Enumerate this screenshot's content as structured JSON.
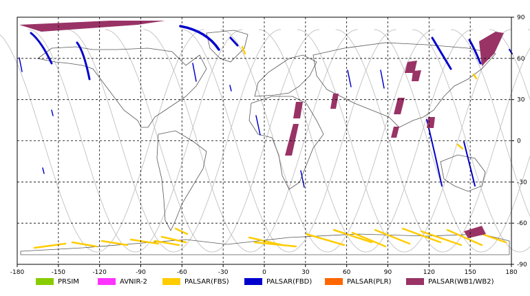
{
  "axes": {
    "x_ticks": [
      "-180",
      "-150",
      "-120",
      "-90",
      "-60",
      "-30",
      "0",
      "30",
      "60",
      "90",
      "120",
      "150",
      "180"
    ],
    "y_ticks_right": [
      "90",
      "60",
      "30",
      "0",
      "-30",
      "-60",
      "-90"
    ]
  },
  "legend": [
    {
      "label": "PRSIM",
      "color": "#88cc00"
    },
    {
      "label": "AVNIR-2",
      "color": "#ff33ff"
    },
    {
      "label": "PALSAR(FBS)",
      "color": "#ffcc00"
    },
    {
      "label": "PALSAR(FBD)",
      "color": "#0000cc"
    },
    {
      "label": "PALSAR(PLR)",
      "color": "#ff6600"
    },
    {
      "label": "PALSAR(WB1/WB2)",
      "color": "#993366"
    }
  ],
  "map": {
    "lon_range": [
      -180,
      180
    ],
    "lat_range": [
      -90,
      90
    ],
    "gridlines": "dashed every 30 degrees",
    "orbit_track_color": "#c0c0c0",
    "coastline_color": "#555555"
  }
}
